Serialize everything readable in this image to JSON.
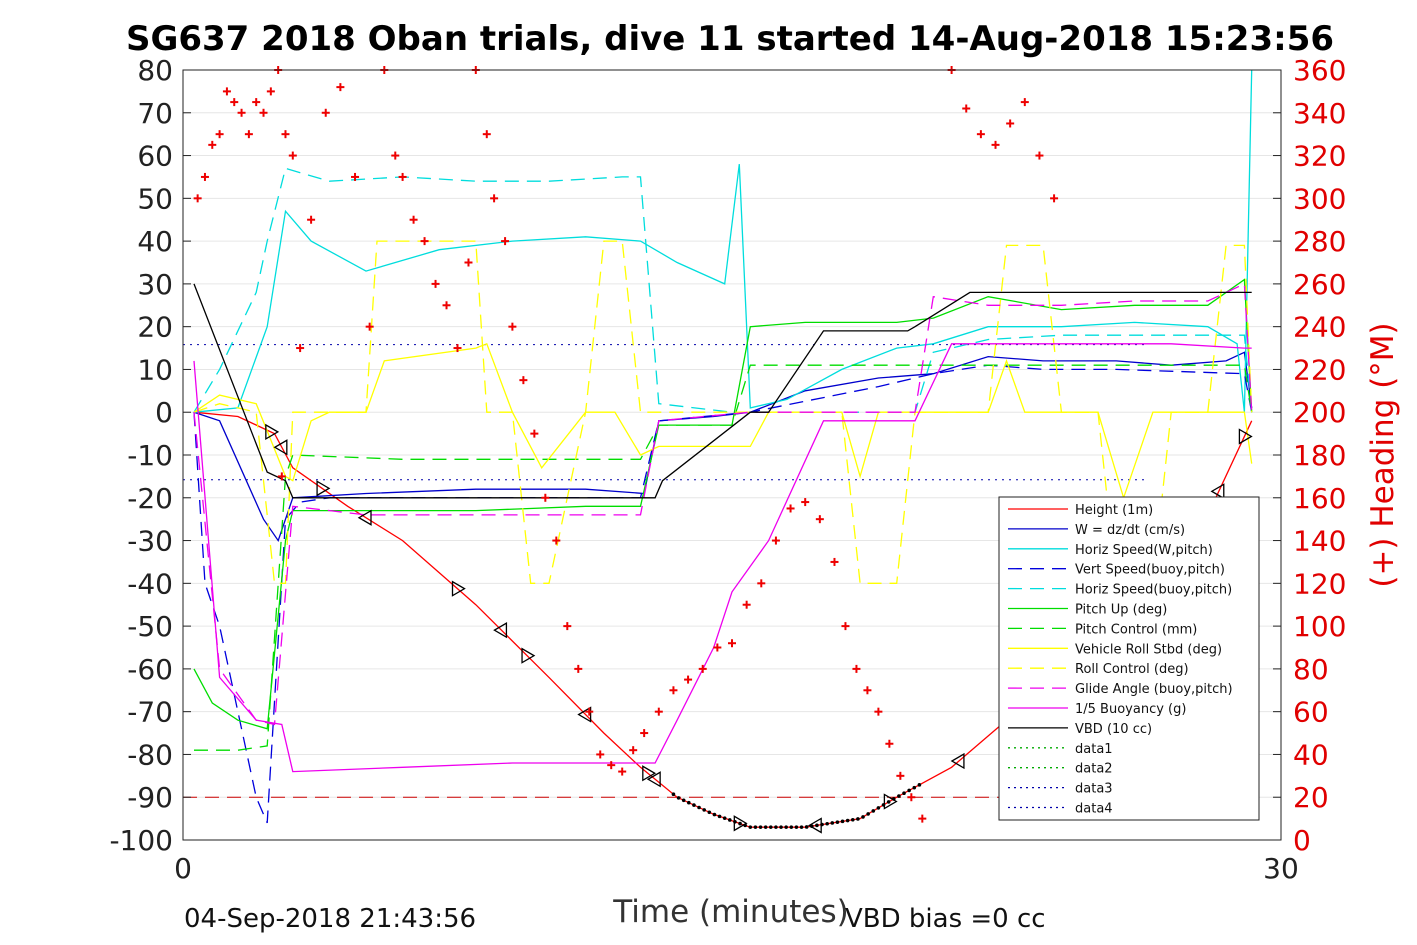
{
  "chart_data": {
    "type": "line",
    "title": "SG637 2018 Oban trials, dive 11 started 14-Aug-2018 15:23:56",
    "xlabel": "Time (minutes)",
    "ylabel_right": "(+) Heading (°M)",
    "xlim": [
      0,
      30
    ],
    "ylim": [
      -100,
      80
    ],
    "ylim_right": [
      0,
      360
    ],
    "x_ticks": [
      "0",
      "30"
    ],
    "y_ticks": [
      "80",
      "70",
      "60",
      "50",
      "40",
      "30",
      "20",
      "10",
      "0",
      "-10",
      "-20",
      "-30",
      "-40",
      "-50",
      "-60",
      "-70",
      "-80",
      "-90",
      "-100"
    ],
    "y_tick_values": [
      80,
      70,
      60,
      50,
      40,
      30,
      20,
      10,
      0,
      -10,
      -20,
      -30,
      -40,
      -50,
      -60,
      -70,
      -80,
      -90,
      -100
    ],
    "y2_ticks": [
      "360",
      "340",
      "320",
      "300",
      "280",
      "260",
      "240",
      "220",
      "200",
      "180",
      "160",
      "140",
      "120",
      "100",
      "80",
      "60",
      "40",
      "20",
      "0"
    ],
    "y2_tick_values": [
      360,
      340,
      320,
      300,
      280,
      260,
      240,
      220,
      200,
      180,
      160,
      140,
      120,
      100,
      80,
      60,
      40,
      20,
      0
    ],
    "grid": true,
    "legend_position": "lower-right",
    "footer_left": "04-Sep-2018 21:43:56",
    "footer_right": "VBD bias =0 cc",
    "horizontal_refs": [
      {
        "y": 15.8,
        "color": "#0000aa",
        "style": "dotted"
      },
      {
        "y": -15.8,
        "color": "#0000aa",
        "style": "dotted"
      },
      {
        "y": -90,
        "color": "#cc0000",
        "style": "dashed"
      }
    ],
    "series": [
      {
        "name": "Height (1m)",
        "color": "#ff0000",
        "style": "solid",
        "x": [
          0.3,
          1.5,
          2.5,
          3.0,
          4.5,
          6.0,
          8.0,
          10.0,
          11.5,
          12.5,
          13.5,
          14.5,
          15.5,
          17.0,
          18.5,
          19.5,
          21.0,
          22.5,
          24.5,
          26.5,
          28.0,
          29.2
        ],
        "y": [
          0,
          -1,
          -5,
          -13,
          -22,
          -30,
          -45,
          -62,
          -75,
          -83,
          -90,
          -94,
          -97,
          -97,
          -95,
          -90,
          -83,
          -72,
          -57,
          -40,
          -24,
          -2
        ]
      },
      {
        "name": "W = dz/dt (cm/s)",
        "color": "#0000cc",
        "style": "solid",
        "x": [
          0.3,
          1.0,
          2.2,
          2.6,
          3.0,
          5.0,
          8.0,
          11.0,
          12.6,
          13.0,
          14.5,
          15.5,
          17.0,
          19.0,
          20.5,
          22.0,
          23.5,
          25.5,
          27.0,
          28.5,
          29.0,
          29.2
        ],
        "y": [
          0,
          -2,
          -25,
          -30,
          -20,
          -19,
          -18,
          -18,
          -19,
          -2,
          -1,
          0,
          5,
          8,
          9,
          13,
          12,
          12,
          11,
          12,
          14,
          1
        ]
      },
      {
        "name": "Horiz Speed(W,pitch)",
        "color": "#00dddd",
        "style": "solid",
        "x": [
          0.3,
          1.5,
          2.3,
          2.8,
          3.5,
          5.0,
          7.0,
          9.0,
          11.0,
          12.5,
          13.5,
          14.8,
          15.2,
          15.5,
          16.5,
          18.0,
          19.5,
          20.5,
          22.0,
          24.0,
          26.0,
          28.0,
          28.8,
          29.0,
          29.2
        ],
        "y": [
          0,
          1,
          20,
          47,
          40,
          33,
          38,
          40,
          41,
          40,
          35,
          30,
          58,
          1,
          3,
          10,
          15,
          16,
          20,
          20,
          21,
          20,
          16,
          0,
          80
        ]
      },
      {
        "name": "Vert Speed(buoy,pitch)",
        "color": "#0000dd",
        "style": "dashed",
        "x": [
          0.3,
          0.6,
          1.0,
          1.5,
          2.0,
          2.3,
          2.8,
          3.2,
          4.0,
          8.0,
          12.5,
          13.0,
          15.5,
          19.0,
          20.5,
          22.0,
          23.5,
          25.5,
          29.0,
          29.2
        ],
        "y": [
          0,
          -40,
          -50,
          -70,
          -90,
          -96,
          -25,
          -21,
          -20,
          -20,
          -20,
          -2,
          0,
          6,
          9,
          11,
          10,
          10,
          9,
          0
        ]
      },
      {
        "name": "Horiz Speed(buoy,pitch)",
        "color": "#00dddd",
        "style": "dashed",
        "x": [
          0.3,
          1.0,
          2.0,
          2.3,
          2.8,
          4.0,
          6.0,
          8.0,
          10.0,
          12.0,
          12.5,
          13.0,
          15.0,
          20.0,
          20.5,
          22.0,
          24.0,
          26.0,
          28.5,
          29.0,
          29.2
        ],
        "y": [
          0,
          10,
          28,
          40,
          57,
          54,
          55,
          54,
          54,
          55,
          55,
          2,
          0,
          0,
          14,
          17,
          18,
          18,
          18,
          18,
          0
        ]
      },
      {
        "name": "Pitch Up (deg)",
        "color": "#00dd00",
        "style": "solid",
        "x": [
          0.3,
          0.8,
          1.5,
          2.3,
          2.8,
          3.0,
          5.0,
          8.0,
          11.0,
          12.5,
          13.0,
          15.0,
          15.5,
          17.0,
          19.5,
          20.5,
          22.0,
          24.0,
          26.0,
          28.0,
          29.0,
          29.2
        ],
        "y": [
          -60,
          -68,
          -72,
          -74,
          -30,
          -23,
          -23,
          -23,
          -22,
          -22,
          -3,
          -3,
          20,
          21,
          21,
          22,
          27,
          24,
          25,
          25,
          31,
          0
        ]
      },
      {
        "name": "Pitch Control (mm)",
        "color": "#00dd00",
        "style": "dashed",
        "x": [
          0.3,
          1.5,
          2.3,
          2.8,
          3.0,
          6.0,
          9.0,
          12.5,
          13.0,
          15.0,
          15.5,
          20.0,
          20.5,
          29.0,
          29.2
        ],
        "y": [
          -79,
          -79,
          -78,
          -15,
          -10,
          -11,
          -11,
          -11,
          -3,
          -3,
          11,
          11,
          11,
          11,
          0
        ]
      },
      {
        "name": "Vehicle Roll Stbd (deg)",
        "color": "#ffff00",
        "style": "solid",
        "x": [
          0.3,
          1.0,
          2.0,
          2.8,
          3.0,
          3.5,
          4.0,
          5.0,
          5.5,
          8.0,
          8.3,
          9.0,
          9.8,
          11.0,
          11.8,
          12.5,
          13.0,
          15.5,
          16.0,
          18.0,
          18.5,
          19.0,
          20.0,
          20.5,
          22.0,
          22.5,
          23.0,
          25.0,
          25.7,
          26.5,
          27.5,
          29.0,
          29.2
        ],
        "y": [
          0,
          4,
          2,
          -15,
          -16,
          -2,
          0,
          0,
          12,
          15,
          16,
          0,
          -13,
          0,
          0,
          -10,
          -8,
          -8,
          0,
          0,
          -15,
          0,
          0,
          0,
          0,
          12,
          0,
          0,
          -20,
          0,
          0,
          0,
          -12
        ]
      },
      {
        "name": "Roll Control (deg)",
        "color": "#ffff00",
        "style": "dashed",
        "x": [
          0.3,
          1.0,
          2.0,
          2.5,
          2.8,
          3.0,
          3.6,
          4.0,
          5.0,
          5.3,
          8.0,
          8.3,
          9.0,
          9.5,
          10.0,
          11.0,
          11.5,
          12.0,
          12.5,
          13.0,
          15.5,
          18.0,
          18.5,
          19.5,
          20.0,
          20.5,
          22.0,
          22.5,
          23.5,
          24.0,
          25.0,
          25.5,
          26.5,
          27.0,
          28.0,
          28.5,
          29.0,
          29.2
        ],
        "y": [
          0,
          2,
          0,
          -40,
          -40,
          0,
          0,
          0,
          0,
          40,
          40,
          0,
          0,
          -40,
          -40,
          0,
          40,
          40,
          0,
          0,
          0,
          0,
          -40,
          -40,
          0,
          0,
          0,
          39,
          39,
          0,
          0,
          -40,
          -40,
          0,
          0,
          39,
          39,
          0
        ]
      },
      {
        "name": "Glide Angle (buoy,pitch)",
        "color": "#ee00ee",
        "style": "dashed",
        "x": [
          0.3,
          1.0,
          2.0,
          2.5,
          3.0,
          5.0,
          8.0,
          12.5,
          13.0,
          15.5,
          20.0,
          20.5,
          22.0,
          24.0,
          26.0,
          28.0,
          29.0,
          29.2
        ],
        "y": [
          0,
          -60,
          -72,
          -73,
          -22,
          -24,
          -24,
          -24,
          -2,
          0,
          0,
          27,
          25,
          25,
          26,
          26,
          30,
          0
        ]
      },
      {
        "name": "1/5 Buoyancy (g)",
        "color": "#ee00ee",
        "style": "solid",
        "x": [
          0.3,
          1.0,
          2.0,
          2.7,
          3.0,
          6.0,
          9.0,
          12.9,
          13.5,
          14.5,
          15.0,
          16.0,
          17.5,
          20.0,
          21.0,
          24.0,
          27.0,
          29.0,
          29.2
        ],
        "y": [
          12,
          -62,
          -72,
          -73,
          -84,
          -83,
          -82,
          -82,
          -72,
          -55,
          -42,
          -30,
          -2,
          -2,
          16,
          16,
          16,
          15,
          15
        ]
      },
      {
        "name": "VBD (10 cc)",
        "color": "#000000",
        "style": "solid",
        "x": [
          0.3,
          2.3,
          2.8,
          3.0,
          12.9,
          13.1,
          15.5,
          16.0,
          17.5,
          19.8,
          20.0,
          21.5,
          29.2
        ],
        "y": [
          30,
          -14,
          -16,
          -20,
          -20,
          -16,
          0,
          0,
          19,
          19,
          20,
          28,
          28
        ]
      },
      {
        "name": "data1",
        "color": "#00aa00",
        "style": "dotted",
        "x": [],
        "y": []
      },
      {
        "name": "data2",
        "color": "#00aa00",
        "style": "dotted",
        "x": [],
        "y": []
      },
      {
        "name": "data3",
        "color": "#0000aa",
        "style": "dotted",
        "x": [],
        "y": []
      },
      {
        "name": "data4",
        "color": "#0000aa",
        "style": "dotted",
        "x": [],
        "y": []
      }
    ],
    "heading_color": "#ee0000",
    "heading_x": [
      0.4,
      0.6,
      0.8,
      1.0,
      1.2,
      1.4,
      1.6,
      1.8,
      2.0,
      2.2,
      2.4,
      2.6,
      2.8,
      3.0,
      3.2,
      2.7,
      3.5,
      3.9,
      4.3,
      4.7,
      5.1,
      5.5,
      5.8,
      6.0,
      6.3,
      6.6,
      6.9,
      7.2,
      7.5,
      7.8,
      8.0,
      8.3,
      8.5,
      8.8,
      9.0,
      9.3,
      9.6,
      9.9,
      10.2,
      10.5,
      10.8,
      11.1,
      11.4,
      11.7,
      12.0,
      12.3,
      12.6,
      13.0,
      13.4,
      13.8,
      14.2,
      14.6,
      15.0,
      15.4,
      15.8,
      16.2,
      16.6,
      17.0,
      17.4,
      17.8,
      18.1,
      18.4,
      18.7,
      19.0,
      19.3,
      19.6,
      19.9,
      20.2,
      21.0,
      21.4,
      21.8,
      22.2,
      22.6,
      23.0,
      23.4,
      23.8,
      24.0,
      24.3,
      24.6,
      24.8,
      25.1,
      25.4,
      25.7,
      26.0,
      26.3,
      26.6,
      26.9,
      27.2,
      27.5,
      27.8,
      28.1,
      28.4,
      29.0
    ],
    "heading_y": [
      300,
      310,
      325,
      330,
      350,
      345,
      340,
      330,
      345,
      340,
      350,
      360,
      330,
      320,
      230,
      170,
      290,
      340,
      352,
      310,
      240,
      360,
      320,
      310,
      290,
      280,
      260,
      250,
      230,
      270,
      360,
      330,
      300,
      280,
      240,
      215,
      190,
      160,
      140,
      100,
      80,
      60,
      40,
      35,
      32,
      42,
      50,
      60,
      70,
      75,
      80,
      90,
      92,
      110,
      120,
      140,
      155,
      158,
      150,
      130,
      100,
      80,
      70,
      60,
      45,
      30,
      20,
      10,
      360,
      342,
      330,
      325,
      335,
      345,
      320,
      300,
      150,
      130,
      120,
      110,
      100,
      90,
      70,
      55,
      40,
      30,
      22,
      20,
      18,
      16,
      20,
      21,
      22
    ]
  }
}
